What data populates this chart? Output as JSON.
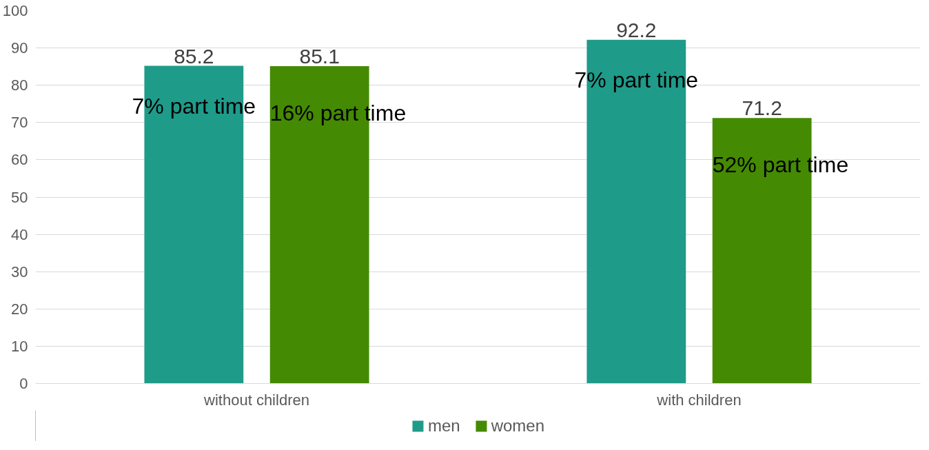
{
  "chart_data": {
    "type": "bar",
    "categories": [
      "without children",
      "with children"
    ],
    "series": [
      {
        "name": "men",
        "color": "#1f9b8a",
        "values": [
          85.2,
          92.2
        ]
      },
      {
        "name": "women",
        "color": "#458a03",
        "values": [
          85.1,
          71.2
        ]
      }
    ],
    "ylim": [
      0,
      100
    ],
    "yticks": [
      0,
      10,
      20,
      30,
      40,
      50,
      60,
      70,
      80,
      90,
      100
    ],
    "grid": "y",
    "legend": "bottom",
    "data_labels": true,
    "annotations": [
      "7% part time",
      "16% part time",
      "7% part time",
      "52% part time"
    ]
  }
}
